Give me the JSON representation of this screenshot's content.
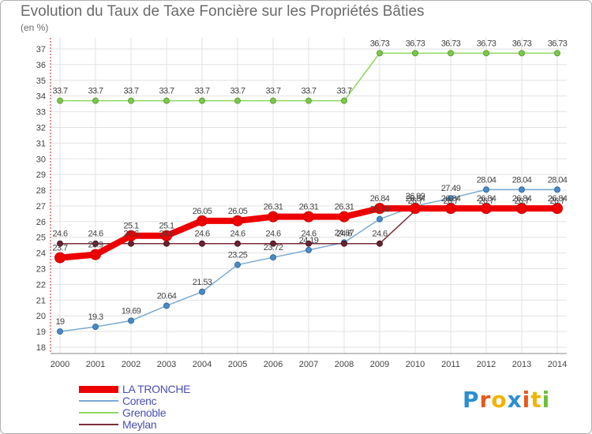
{
  "title": "Evolution du Taux de Taxe Foncière sur les Propriétés Bâties",
  "unit": "(en %)",
  "logo": "Proxiti",
  "colors": {
    "LA TRONCHE": "#ee0000",
    "Corenc": "#7aaad4",
    "Grenoble": "#8ed860",
    "Meylan": "#7a2e3a"
  },
  "chart_data": {
    "type": "line",
    "title": "Evolution du Taux de Taxe Foncière sur les Propriétés Bâties",
    "ylabel": "(en %)",
    "xlabel": "",
    "x": [
      "2000",
      "2001",
      "2002",
      "2003",
      "2004",
      "2005",
      "2006",
      "2007",
      "2008",
      "2009",
      "2010",
      "2011",
      "2012",
      "2013",
      "2014"
    ],
    "ylim": [
      18,
      37
    ],
    "yticks": [
      18,
      19,
      20,
      21,
      22,
      23,
      24,
      25,
      26,
      27,
      28,
      29,
      30,
      31,
      32,
      33,
      34,
      35,
      36,
      37
    ],
    "grid": true,
    "legend": "bottom-left",
    "series": [
      {
        "name": "LA TRONCHE",
        "values": [
          23.7,
          23.9,
          25.1,
          25.1,
          26.05,
          26.05,
          26.31,
          26.31,
          26.31,
          26.84,
          26.84,
          26.84,
          26.84,
          26.84,
          26.84
        ],
        "labels": [
          "23.7",
          "23.9",
          "25.1",
          "25.1",
          "26.05",
          "26.05",
          "26.31",
          "26.31",
          "26.31",
          "26.84",
          "26.84",
          "26.84",
          "26.84",
          "26.84",
          "26.84"
        ]
      },
      {
        "name": "Corenc",
        "values": [
          19,
          19.3,
          19.69,
          20.64,
          21.53,
          23.25,
          23.72,
          24.19,
          24.67,
          26.16,
          26.99,
          27.49,
          28.04,
          28.04,
          28.04
        ],
        "labels": [
          "19",
          "19.3",
          "19.69",
          "20.64",
          "21.53",
          "23.25",
          "23.72",
          "24.19",
          "24.67",
          "26.16",
          "26.99",
          "27.49",
          "28.04",
          "28.04",
          "28.04"
        ]
      },
      {
        "name": "Grenoble",
        "values": [
          33.7,
          33.7,
          33.7,
          33.7,
          33.7,
          33.7,
          33.7,
          33.7,
          33.7,
          36.73,
          36.73,
          36.73,
          36.73,
          36.73,
          36.73
        ],
        "labels": [
          "33.7",
          "33.7",
          "33.7",
          "33.7",
          "33.7",
          "33.7",
          "33.7",
          "33.7",
          "33.7",
          "36.73",
          "36.73",
          "36.73",
          "36.73",
          "36.73",
          "36.73"
        ]
      },
      {
        "name": "Meylan",
        "values": [
          24.6,
          24.6,
          24.6,
          24.6,
          24.6,
          24.6,
          24.6,
          24.6,
          24.6,
          24.6,
          26.7,
          26.7,
          26.7,
          26.7,
          26.7
        ],
        "labels": [
          "24.6",
          "24.6",
          "24.6",
          "24.6",
          "24.6",
          "24.6",
          "24.6",
          "24.6",
          "24.6",
          "24.6",
          "26.7",
          "26.7",
          "26.7",
          "26.7",
          "26.7"
        ]
      }
    ]
  }
}
